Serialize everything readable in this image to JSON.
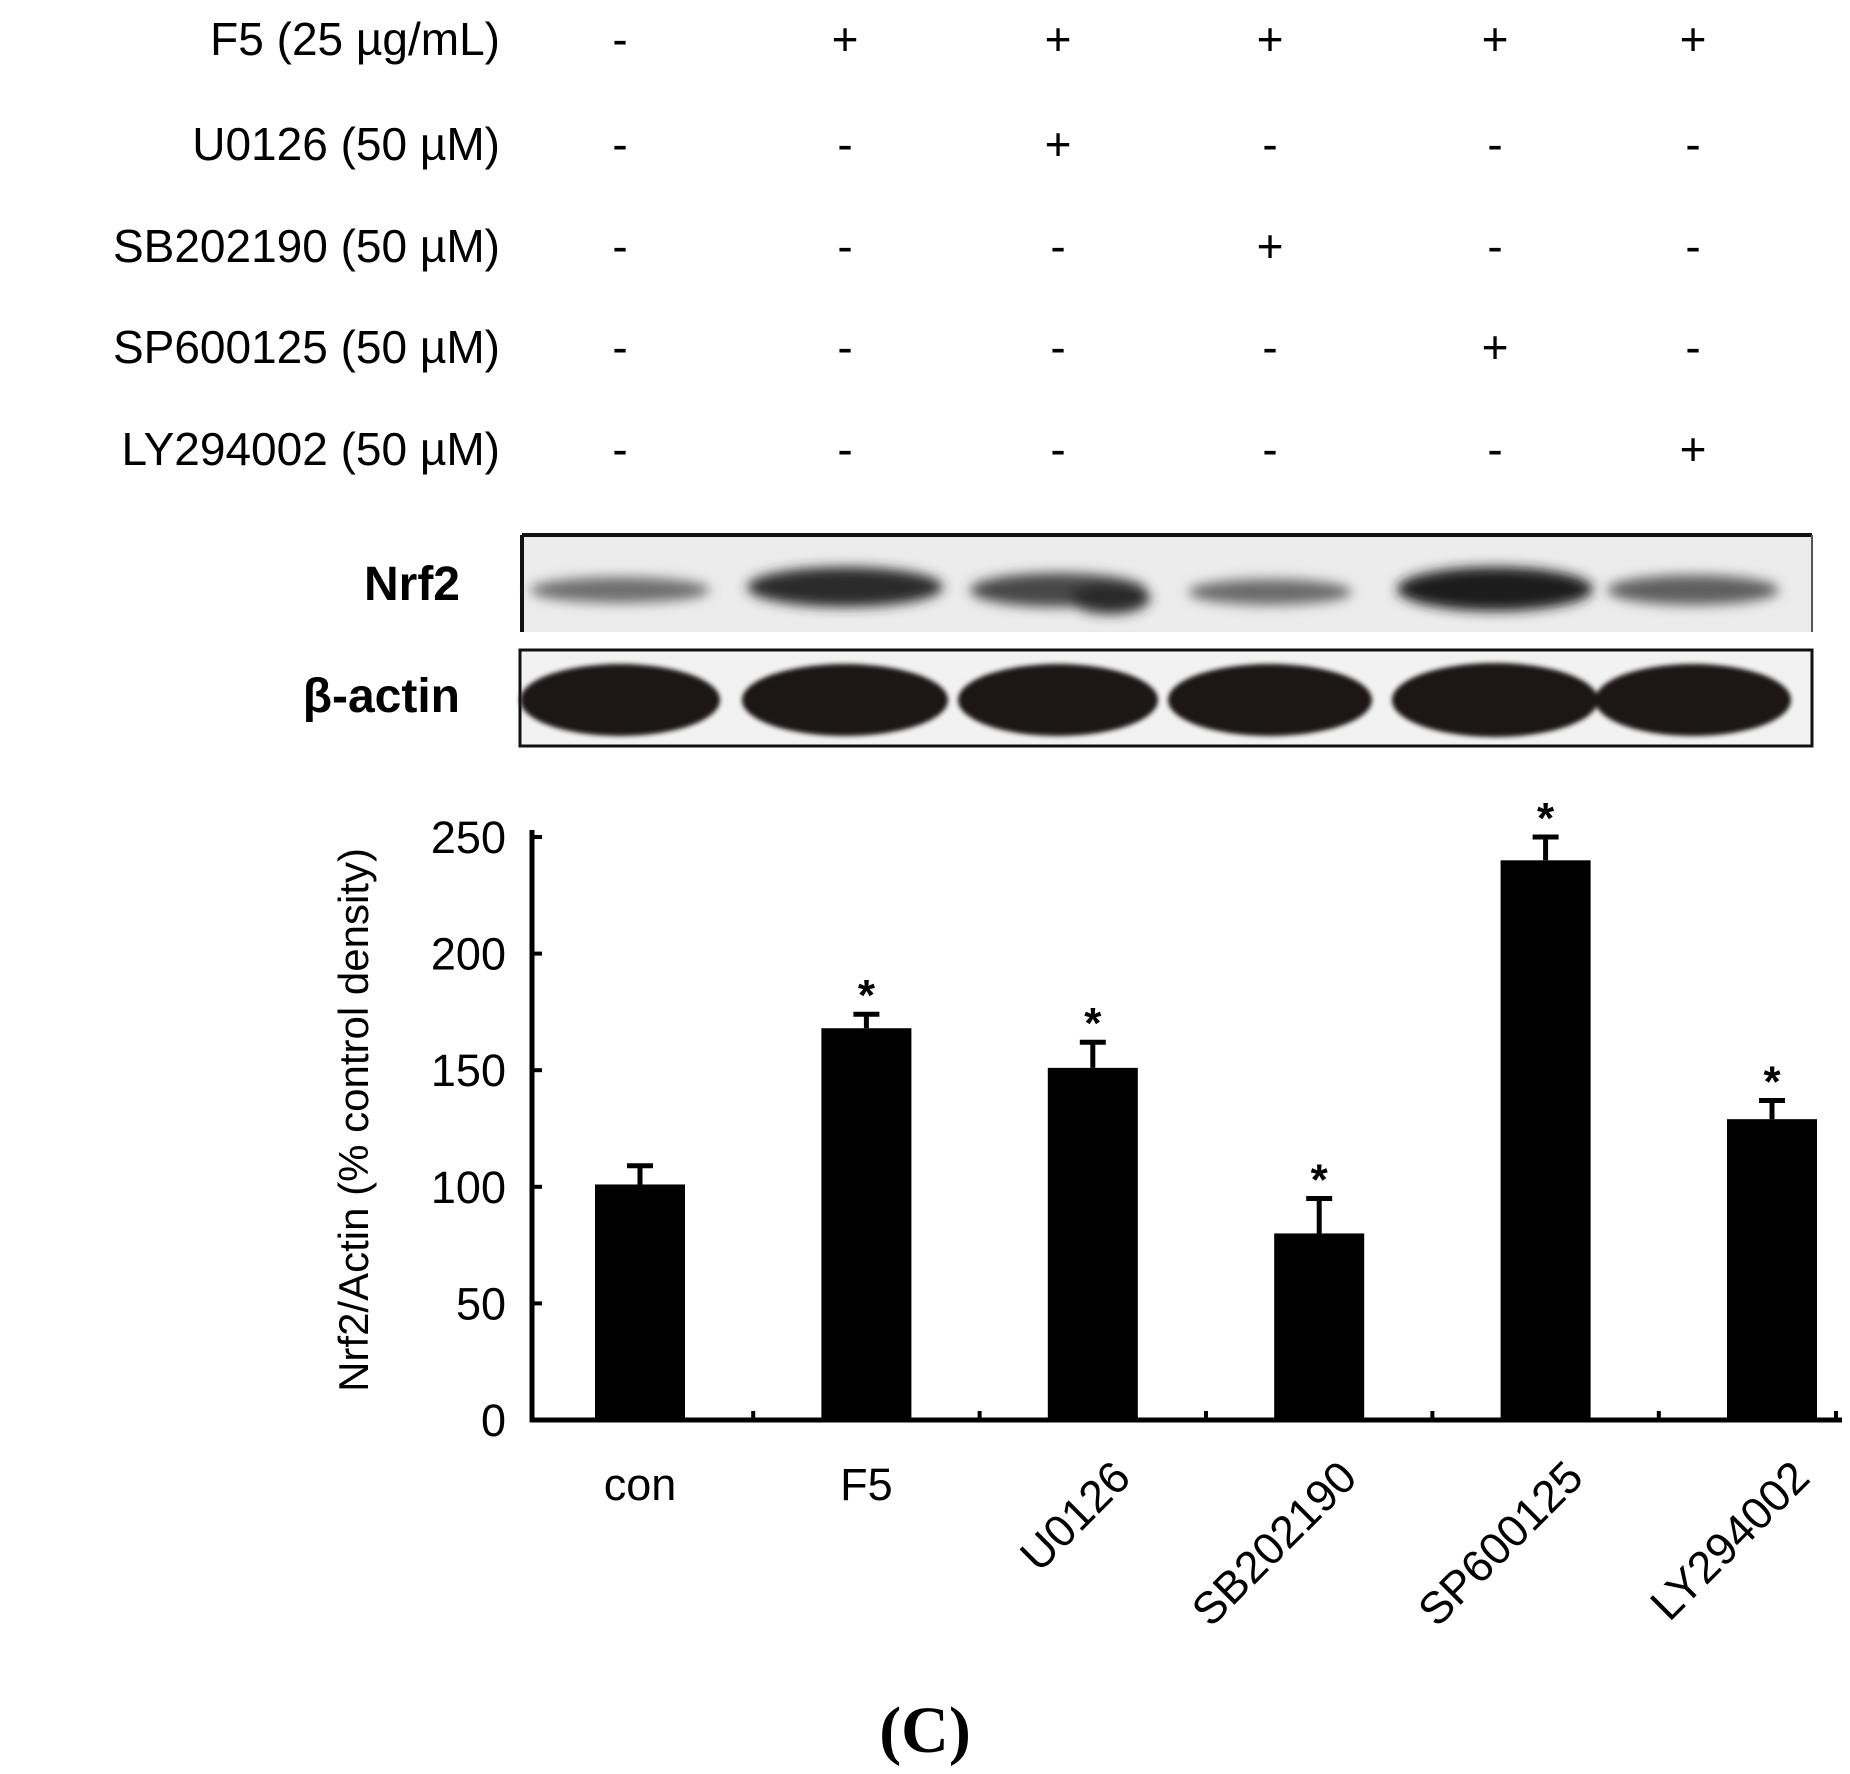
{
  "treatments": {
    "rows": [
      {
        "label": "F5  (25 µg/mL)",
        "signs": [
          "-",
          "+",
          "+",
          "+",
          "+",
          "+"
        ]
      },
      {
        "label": "U0126 (50 µM)",
        "signs": [
          "-",
          "-",
          "+",
          "-",
          "-",
          "-"
        ]
      },
      {
        "label": "SB202190 (50 µM)",
        "signs": [
          "-",
          "-",
          "-",
          "+",
          "-",
          "-"
        ]
      },
      {
        "label": "SP600125 (50 µM)",
        "signs": [
          "-",
          "-",
          "-",
          "-",
          "+",
          "-"
        ]
      },
      {
        "label": "LY294002 (50 µM)",
        "signs": [
          "-",
          "-",
          "-",
          "-",
          "-",
          "+"
        ]
      }
    ]
  },
  "blots": {
    "nrf2_label": "Nrf2",
    "actin_label": "β-actin"
  },
  "chart_data": {
    "type": "bar",
    "categories": [
      "con",
      "F5",
      "U0126",
      "SB202190",
      "SP600125",
      "LY294002"
    ],
    "values": [
      101,
      168,
      151,
      80,
      240,
      129
    ],
    "errors": [
      8,
      6,
      11,
      15,
      10,
      8
    ],
    "significance": [
      "",
      "*",
      "*",
      "*",
      "*",
      "*"
    ],
    "ylabel": "Nrf2/Actin (% control density)",
    "xlabel": "",
    "ylim": [
      0,
      250
    ],
    "yticks": [
      0,
      50,
      100,
      150,
      200,
      250
    ],
    "bar_color": "#000000",
    "grid": false
  },
  "panel_label": "(C)"
}
